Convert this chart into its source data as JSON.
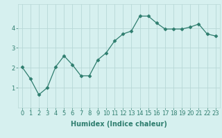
{
  "x": [
    0,
    1,
    2,
    3,
    4,
    5,
    6,
    7,
    8,
    9,
    10,
    11,
    12,
    13,
    14,
    15,
    16,
    17,
    18,
    19,
    20,
    21,
    22,
    23
  ],
  "y": [
    2.05,
    1.45,
    0.65,
    1.0,
    2.05,
    2.6,
    2.15,
    1.6,
    1.6,
    2.4,
    2.75,
    3.35,
    3.7,
    3.85,
    4.6,
    4.6,
    4.25,
    3.95,
    3.95,
    3.95,
    4.05,
    4.2,
    3.7,
    3.6
  ],
  "line_color": "#2e7d6e",
  "marker": "D",
  "marker_size": 2.5,
  "bg_color": "#d6f0ef",
  "grid_color": "#b8d8d6",
  "xlabel": "Humidex (Indice chaleur)",
  "xlim": [
    -0.5,
    23.5
  ],
  "ylim": [
    0,
    5.2
  ],
  "yticks": [
    1,
    2,
    3,
    4
  ],
  "xtick_labels": [
    "0",
    "1",
    "2",
    "3",
    "4",
    "5",
    "6",
    "7",
    "8",
    "9",
    "10",
    "11",
    "12",
    "13",
    "14",
    "15",
    "16",
    "17",
    "18",
    "19",
    "20",
    "21",
    "22",
    "23"
  ],
  "label_fontsize": 7,
  "tick_fontsize": 6
}
